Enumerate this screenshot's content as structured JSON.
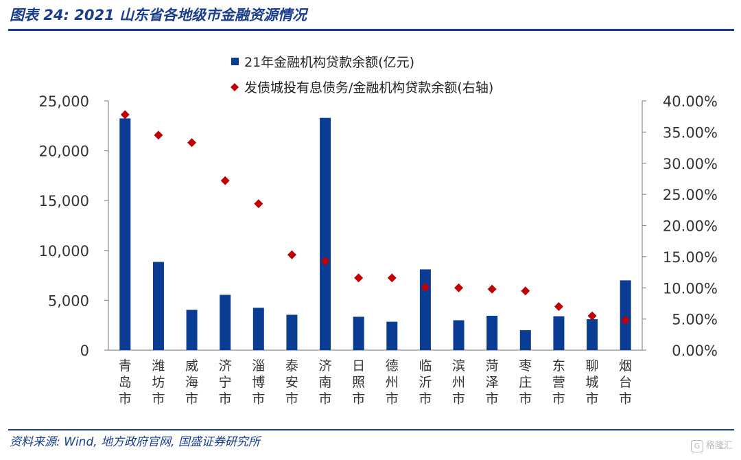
{
  "header": {
    "title": "图表 24:  2021 山东省各地级市金融资源情况"
  },
  "footer": {
    "source": "资料来源:  Wind,  地方政府官网,  国盛证券研究所"
  },
  "watermark": {
    "text": "格隆汇",
    "icon": "g-logo-icon"
  },
  "colors": {
    "bar": "#0b3c94",
    "marker": "#c00000",
    "accent": "#1a3e8c"
  },
  "chart_data": {
    "type": "bar",
    "categories": [
      "青岛市",
      "潍坊市",
      "威海市",
      "济宁市",
      "淄博市",
      "泰安市",
      "济南市",
      "日照市",
      "德州市",
      "临沂市",
      "滨州市",
      "菏泽市",
      "枣庄市",
      "东营市",
      "聊城市",
      "烟台市"
    ],
    "series": [
      {
        "name": "21年金融机构贷款余额(亿元)",
        "type": "bar",
        "axis": "left",
        "values": [
          23250,
          8850,
          4050,
          5550,
          4250,
          3550,
          23300,
          3350,
          2850,
          8100,
          3000,
          3450,
          2000,
          3400,
          3100,
          7000
        ]
      },
      {
        "name": "发债城投有息债务/金融机构贷款余额(右轴)",
        "type": "scatter",
        "marker": "diamond",
        "axis": "right",
        "values": [
          0.378,
          0.345,
          0.333,
          0.272,
          0.235,
          0.153,
          0.143,
          0.116,
          0.116,
          0.101,
          0.1,
          0.098,
          0.095,
          0.07,
          0.055,
          0.048
        ]
      }
    ],
    "y_left": {
      "min": 0,
      "max": 25000,
      "ticks": [
        "0",
        "5,000",
        "10,000",
        "15,000",
        "20,000",
        "25,000"
      ]
    },
    "y_right": {
      "min": 0,
      "max": 0.4,
      "ticks": [
        "0.00%",
        "5.00%",
        "10.00%",
        "15.00%",
        "20.00%",
        "25.00%",
        "30.00%",
        "35.00%",
        "40.00%"
      ]
    },
    "grid": false,
    "legend_position": "top-center"
  }
}
